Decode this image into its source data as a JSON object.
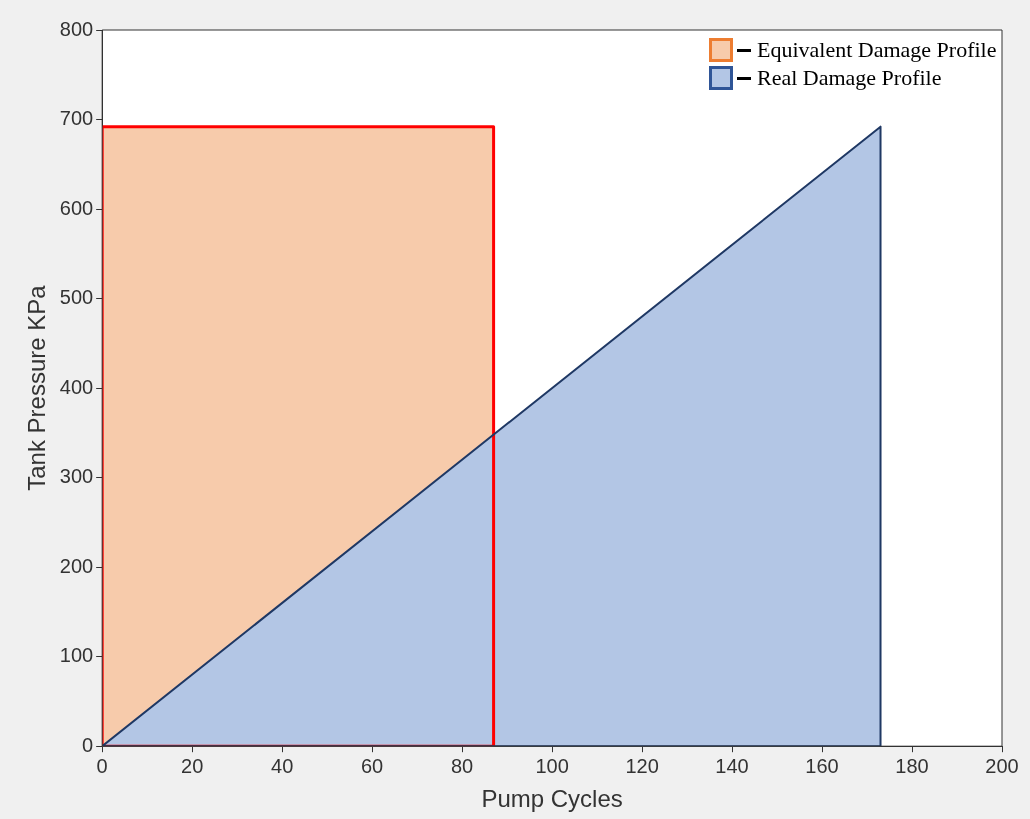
{
  "chart_data": {
    "type": "area",
    "xlabel": "Pump Cycles",
    "ylabel": "Tank Pressure KPa",
    "xlim": [
      0,
      200
    ],
    "xticks": [
      0,
      20,
      40,
      60,
      80,
      100,
      120,
      140,
      160,
      180,
      200
    ],
    "ylim": [
      0,
      800
    ],
    "yticks": [
      0,
      100,
      200,
      300,
      400,
      500,
      600,
      700,
      800
    ],
    "legend": "top right",
    "grid": false,
    "series": [
      {
        "name": "Equivalent Damage Profile",
        "color": "#f7cbab",
        "x": [
          0,
          0,
          87,
          87,
          0
        ],
        "values": [
          0,
          692,
          692,
          0,
          0
        ]
      },
      {
        "name": "Real Damage Profile",
        "color": "#b3c6e5",
        "x": [
          0,
          173,
          173,
          0
        ],
        "values": [
          0,
          692,
          0,
          0
        ]
      }
    ]
  }
}
